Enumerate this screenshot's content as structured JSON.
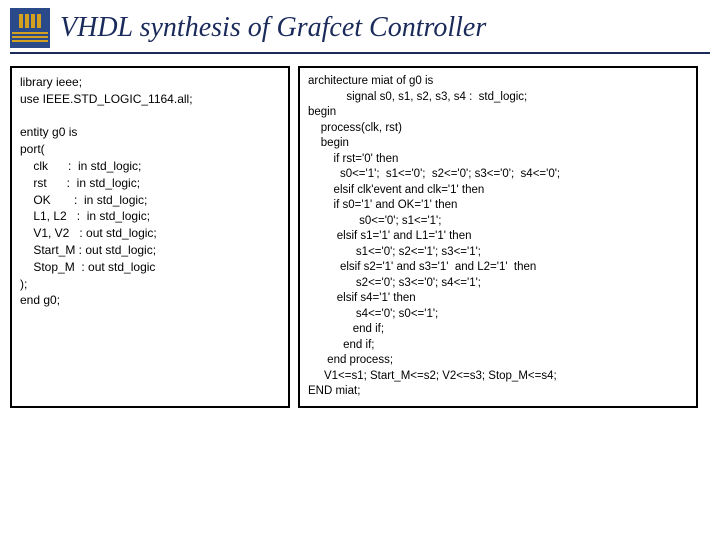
{
  "title": "VHDL synthesis of Grafcet Controller",
  "colors": {
    "title_color": "#1a2a5a",
    "logo_bg": "#2a4a8a",
    "logo_accent": "#d4a020",
    "border": "#000000",
    "text": "#000000",
    "background": "#ffffff"
  },
  "left_code": "library ieee;\nuse IEEE.STD_LOGIC_1164.all;\n\nentity g0 is\nport(\n    clk      :  in std_logic;\n    rst      :  in std_logic;\n    OK       :  in std_logic;\n    L1, L2   :  in std_logic;\n    V1, V2   : out std_logic;\n    Start_M : out std_logic;\n    Stop_M  : out std_logic\n);\nend g0;",
  "right_code": "architecture miat of g0 is\n            signal s0, s1, s2, s3, s4 :  std_logic;\nbegin\n    process(clk, rst)\n    begin\n        if rst='0' then\n          s0<='1';  s1<='0';  s2<='0'; s3<='0';  s4<='0';\n        elsif clk'event and clk='1' then\n        if s0='1' and OK='1' then\n                s0<='0'; s1<='1';\n         elsif s1='1' and L1='1' then\n               s1<='0'; s2<='1'; s3<='1';\n          elsif s2='1' and s3='1'  and L2='1'  then\n               s2<='0'; s3<='0'; s4<='1';\n         elsif s4='1' then\n               s4<='0'; s0<='1';\n              end if;\n           end if;\n      end process;\n     V1<=s1; Start_M<=s2; V2<=s3; Stop_M<=s4;\nEND miat;"
}
